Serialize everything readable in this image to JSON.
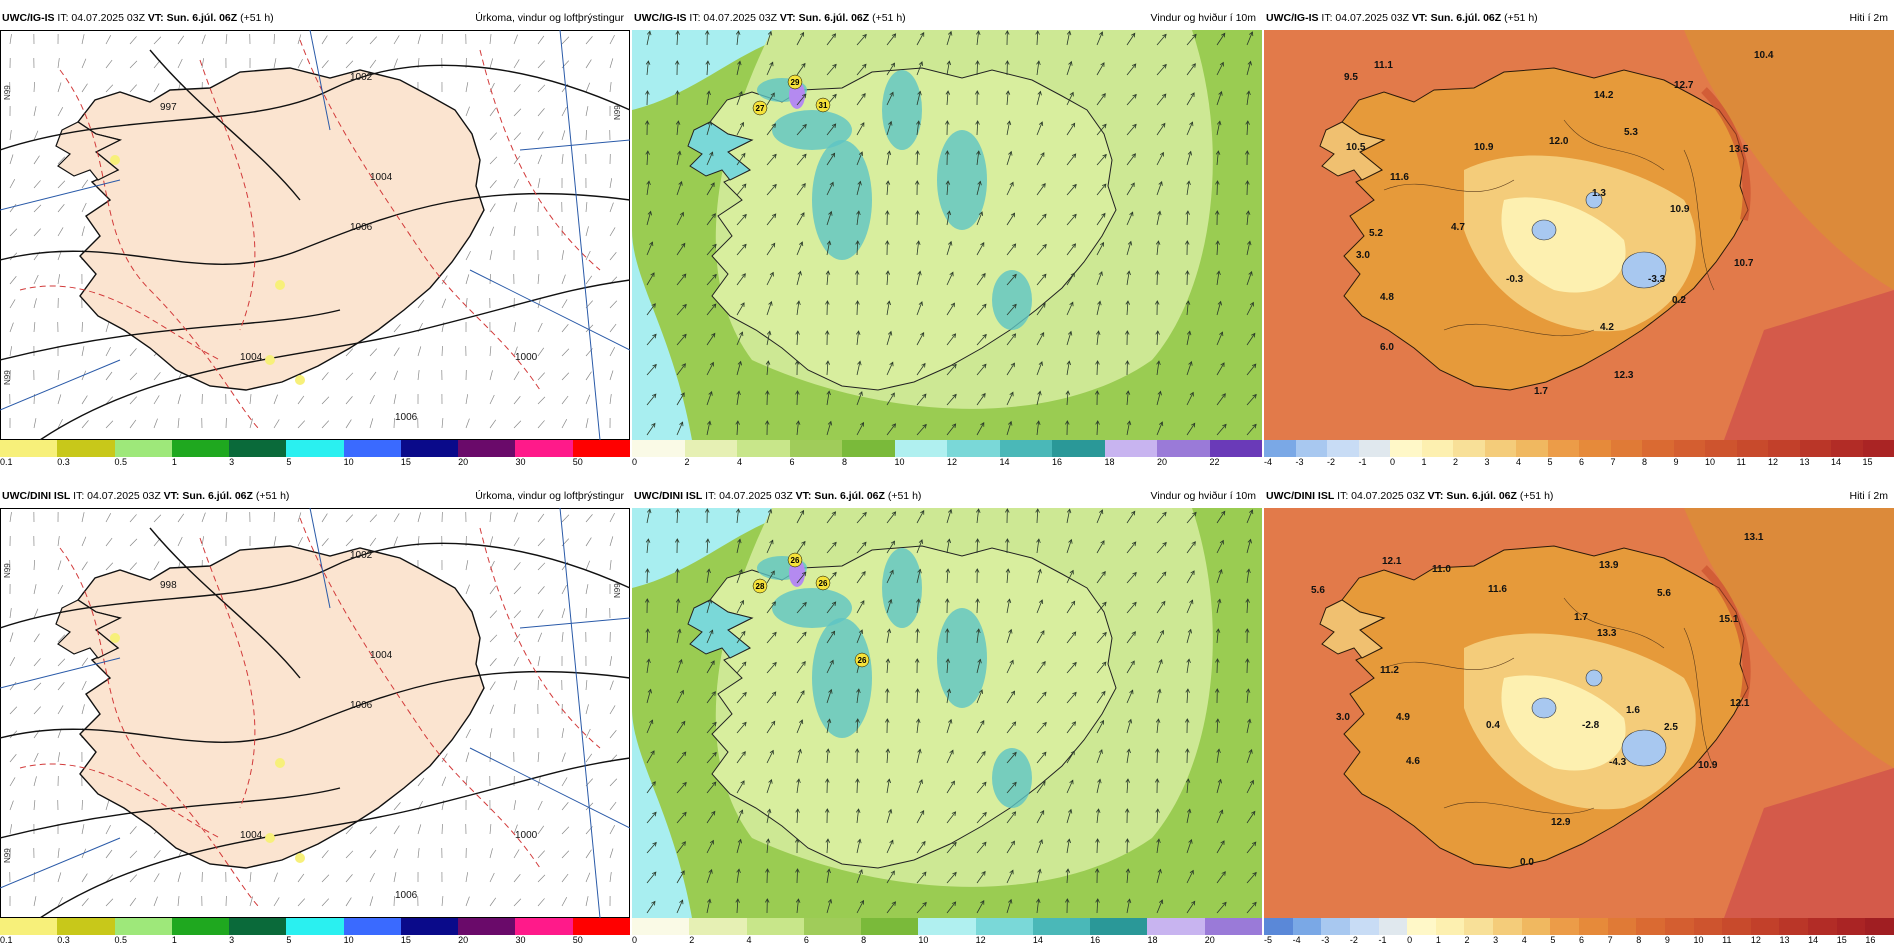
{
  "rows": [
    {
      "model": "UWC/IG-IS",
      "it": "IT: 04.07.2025 03Z",
      "vt": "VT: Sun. 6.júl. 06Z",
      "lead": "(+51 h)",
      "precip": {
        "title": "Úrkoma, vindur og loftþrýstingur",
        "scale": [
          "0.1",
          "0.3",
          "0.5",
          "1",
          "3",
          "5",
          "10",
          "15",
          "20",
          "30",
          "50"
        ],
        "colors": [
          "#f7f07a",
          "#c8c81a",
          "#9ee87a",
          "#1fa81f",
          "#0a6a3a",
          "#2af0f0",
          "#3a6aff",
          "#0a0a8a",
          "#6a0a6a",
          "#ff1a8a",
          "#ff0000"
        ],
        "labels": [
          "1006",
          "1004",
          "1002",
          "1000",
          "997",
          "1006",
          "1004"
        ],
        "lat": [
          "N99",
          "N99",
          "N99"
        ]
      },
      "wind": {
        "title": "Vindur og hviður í 10m",
        "scale": [
          "0",
          "2",
          "4",
          "6",
          "8",
          "10",
          "12",
          "14",
          "16",
          "18",
          "20",
          "22"
        ],
        "colors": [
          "#fafae6",
          "#e6f0b4",
          "#c8e68a",
          "#a0cc5a",
          "#7aba3a",
          "#b0f0f0",
          "#7ad8d8",
          "#4ab8b8",
          "#2a9898",
          "#c8b4f0",
          "#9a7ad8",
          "#6a3ab8"
        ],
        "gusts": [
          "29",
          "27",
          "31"
        ]
      },
      "temp": {
        "title": "Hiti í 2m",
        "scale": [
          "-4",
          "-3",
          "-2",
          "-1",
          "0",
          "1",
          "2",
          "3",
          "4",
          "5",
          "6",
          "7",
          "8",
          "9",
          "10",
          "11",
          "12",
          "13",
          "14",
          "15"
        ],
        "colors": [
          "#7aa8e6",
          "#a8c8f0",
          "#c8dcf5",
          "#e0e8ee",
          "#fff8c8",
          "#fdf0b0",
          "#f8e098",
          "#f4cc7a",
          "#f0b860",
          "#ec9c48",
          "#e68a3a",
          "#e07a36",
          "#da6a32",
          "#d45e30",
          "#ce542e",
          "#c84a2c",
          "#c2402a",
          "#ba3628",
          "#b22c26",
          "#aa2424"
        ],
        "values": [
          {
            "v": "11.1"
          },
          {
            "v": "9.5"
          },
          {
            "v": "10.4"
          },
          {
            "v": "14.2"
          },
          {
            "v": "12.7"
          },
          {
            "v": "10.5"
          },
          {
            "v": "10.9"
          },
          {
            "v": "12.0"
          },
          {
            "v": "5.3"
          },
          {
            "v": "13.5"
          },
          {
            "v": "11.6"
          },
          {
            "v": "1.3"
          },
          {
            "v": "4.7"
          },
          {
            "v": "10.9"
          },
          {
            "v": "5.2"
          },
          {
            "v": "3.0"
          },
          {
            "v": "-0.3"
          },
          {
            "v": "-3.3"
          },
          {
            "v": "10.7"
          },
          {
            "v": "4.8"
          },
          {
            "v": "0.2"
          },
          {
            "v": "4.2"
          },
          {
            "v": "6.0"
          },
          {
            "v": "12.3"
          },
          {
            "v": "1.7"
          }
        ]
      }
    },
    {
      "model": "UWC/DINI ISL",
      "it": "IT: 04.07.2025 03Z",
      "vt": "VT: Sun. 6.júl. 06Z",
      "lead": "(+51 h)",
      "precip": {
        "title": "Úrkoma, vindur og loftþrýstingur",
        "scale": [
          "0.1",
          "0.3",
          "0.5",
          "1",
          "3",
          "5",
          "10",
          "15",
          "20",
          "30",
          "50"
        ],
        "colors": [
          "#f7f07a",
          "#c8c81a",
          "#9ee87a",
          "#1fa81f",
          "#0a6a3a",
          "#2af0f0",
          "#3a6aff",
          "#0a0a8a",
          "#6a0a6a",
          "#ff1a8a",
          "#ff0000"
        ],
        "labels": [
          "1006",
          "1004",
          "1002",
          "1000",
          "998",
          "1006",
          "1004"
        ],
        "lat": [
          "N99",
          "N99",
          "N99"
        ]
      },
      "wind": {
        "title": "Vindur og hviður í 10m",
        "scale": [
          "0",
          "2",
          "4",
          "6",
          "8",
          "10",
          "12",
          "14",
          "16",
          "18",
          "20"
        ],
        "colors": [
          "#fafae6",
          "#e6f0b4",
          "#c8e68a",
          "#a0cc5a",
          "#7aba3a",
          "#b0f0f0",
          "#7ad8d8",
          "#4ab8b8",
          "#2a9898",
          "#c8b4f0",
          "#9a7ad8"
        ],
        "gusts": [
          "26",
          "28",
          "26",
          "26"
        ]
      },
      "temp": {
        "title": "Hiti í 2m",
        "scale": [
          "-5",
          "-4",
          "-3",
          "-2",
          "-1",
          "0",
          "1",
          "2",
          "3",
          "4",
          "5",
          "6",
          "7",
          "8",
          "9",
          "10",
          "11",
          "12",
          "13",
          "14",
          "15",
          "16"
        ],
        "colors": [
          "#5a88d8",
          "#7aa8e6",
          "#a8c8f0",
          "#c8dcf5",
          "#e0e8ee",
          "#fff8c8",
          "#fdf0b0",
          "#f8e098",
          "#f4cc7a",
          "#f0b860",
          "#ec9c48",
          "#e68a3a",
          "#e07a36",
          "#da6a32",
          "#d45e30",
          "#ce542e",
          "#c84a2c",
          "#c2402a",
          "#ba3628",
          "#b22c26",
          "#aa2424",
          "#a01e22"
        ],
        "values": [
          {
            "v": "13.1"
          },
          {
            "v": "12.1"
          },
          {
            "v": "11.0"
          },
          {
            "v": "13.9"
          },
          {
            "v": "5.6"
          },
          {
            "v": "11.6"
          },
          {
            "v": "5.6"
          },
          {
            "v": "1.7"
          },
          {
            "v": "13.3"
          },
          {
            "v": "15.1"
          },
          {
            "v": "11.2"
          },
          {
            "v": "12.1"
          },
          {
            "v": "3.0"
          },
          {
            "v": "4.9"
          },
          {
            "v": "1.6"
          },
          {
            "v": "0.4"
          },
          {
            "v": "-2.8"
          },
          {
            "v": "2.5"
          },
          {
            "v": "4.6"
          },
          {
            "v": "-4.3"
          },
          {
            "v": "10.9"
          },
          {
            "v": "12.9"
          },
          {
            "v": "0.0"
          }
        ]
      }
    }
  ]
}
